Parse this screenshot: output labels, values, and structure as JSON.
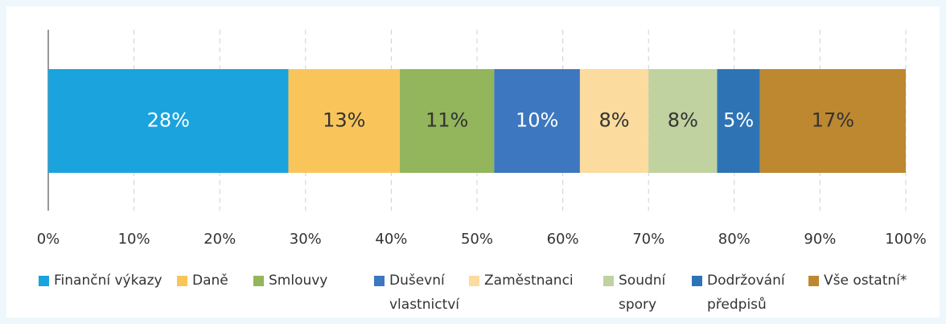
{
  "chart_data": {
    "type": "stacked-bar-horizontal",
    "series": [
      {
        "name": "Finanční výkazy",
        "color": "#1ba3dd",
        "values": [
          28
        ],
        "value_labels": [
          "28%"
        ]
      },
      {
        "name": "Daně",
        "color": "#f9c55a",
        "values": [
          13
        ],
        "value_labels": [
          "13%"
        ]
      },
      {
        "name": "Smlouvy",
        "color": "#93b55b",
        "values": [
          11
        ],
        "value_labels": [
          "11%"
        ]
      },
      {
        "name": "Duševní vlastnictví",
        "color": "#3d77bf",
        "values": [
          10
        ],
        "value_labels": [
          "10%"
        ]
      },
      {
        "name": "Zaměstnanci",
        "color": "#fbdb9e",
        "values": [
          8
        ],
        "value_labels": [
          "8%"
        ]
      },
      {
        "name": "Soudní spory",
        "color": "#bfd29f",
        "values": [
          8
        ],
        "value_labels": [
          "8%"
        ]
      },
      {
        "name": "Dodržování předpisů",
        "color": "#2e74b5",
        "values": [
          5
        ],
        "value_labels": [
          "5%"
        ]
      },
      {
        "name": "Vše ostatní*",
        "color": "#bd8830",
        "values": [
          17
        ],
        "value_labels": [
          "17%"
        ]
      }
    ],
    "xlim": [
      0,
      100
    ],
    "xticks": [
      {
        "value": 0,
        "label": "0%"
      },
      {
        "value": 10,
        "label": "10%"
      },
      {
        "value": 20,
        "label": "20%"
      },
      {
        "value": 30,
        "label": "30%"
      },
      {
        "value": 40,
        "label": "40%"
      },
      {
        "value": 50,
        "label": "50%"
      },
      {
        "value": 60,
        "label": "60%"
      },
      {
        "value": 70,
        "label": "70%"
      },
      {
        "value": 80,
        "label": "80%"
      },
      {
        "value": 90,
        "label": "90%"
      },
      {
        "value": 100,
        "label": "100%"
      }
    ],
    "grid": true,
    "legend": "bottom"
  }
}
